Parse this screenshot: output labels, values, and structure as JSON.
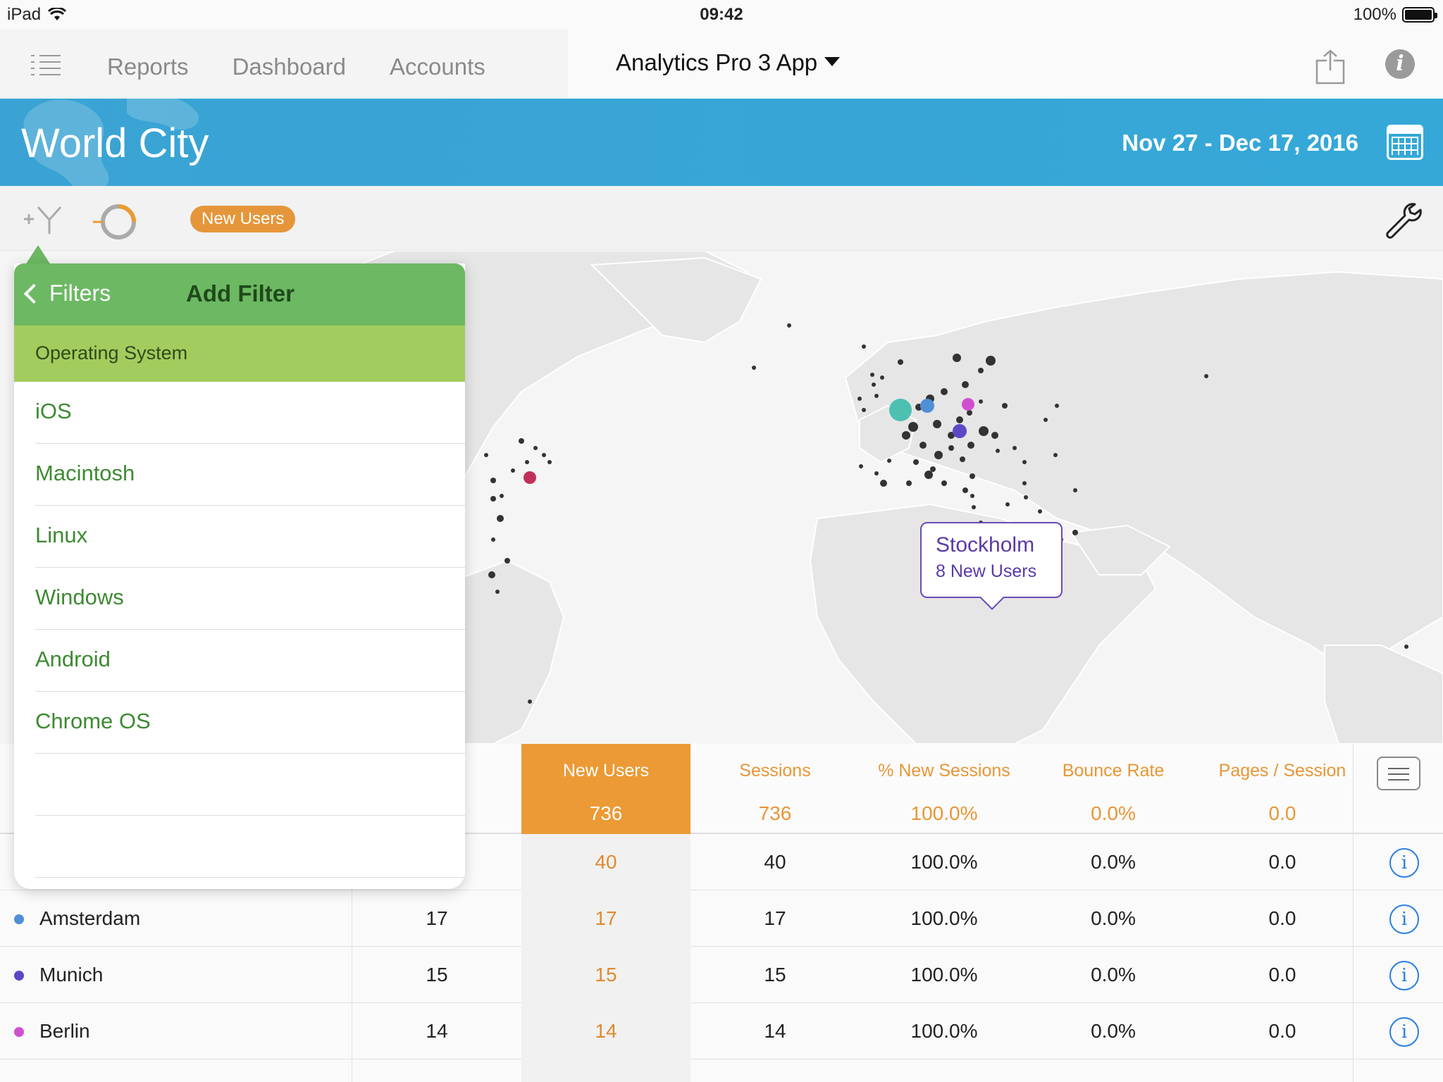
{
  "status_bar": {
    "device": "iPad",
    "time": "09:42",
    "battery": "100%",
    "battery_level": 1.0
  },
  "nav": {
    "tabs": [
      "Reports",
      "Dashboard",
      "Accounts"
    ],
    "app_title": "Analytics Pro 3 App"
  },
  "banner": {
    "title": "World City",
    "date_range": "Nov 27 - Dec 17, 2016"
  },
  "toolbar": {
    "metric_pill": "New Users"
  },
  "map_callout": {
    "city": "Stockholm",
    "detail": "8 New Users"
  },
  "colors": {
    "banner": "#3aa3d3",
    "accent_orange": "#eb9a35",
    "filter_green": "#6db863",
    "section_green": "#a3cc5e",
    "amsterdam": "#4f8fd6",
    "munich": "#5a48c6",
    "berlin": "#d04fd0"
  },
  "table": {
    "headers": [
      {
        "label": "New Users",
        "total": "736"
      },
      {
        "label": "Sessions",
        "total": "736"
      },
      {
        "label": "% New Sessions",
        "total": "100.0%"
      },
      {
        "label": "Bounce Rate",
        "total": "0.0%"
      },
      {
        "label": "Pages / Session",
        "total": "0.0"
      }
    ],
    "rows": [
      {
        "name": "",
        "users": "",
        "new_users": "40",
        "sessions": "40",
        "pct_new": "100.0%",
        "bounce": "0.0%",
        "pages": "0.0"
      },
      {
        "name": "Amsterdam",
        "users": "17",
        "new_users": "17",
        "sessions": "17",
        "pct_new": "100.0%",
        "bounce": "0.0%",
        "pages": "0.0"
      },
      {
        "name": "Munich",
        "users": "15",
        "new_users": "15",
        "sessions": "15",
        "pct_new": "100.0%",
        "bounce": "0.0%",
        "pages": "0.0"
      },
      {
        "name": "Berlin",
        "users": "14",
        "new_users": "14",
        "sessions": "14",
        "pct_new": "100.0%",
        "bounce": "0.0%",
        "pages": "0.0"
      }
    ]
  },
  "filter_popover": {
    "back_label": "Filters",
    "title": "Add Filter",
    "section": "Operating System",
    "items": [
      "iOS",
      "Macintosh",
      "Linux",
      "Windows",
      "Android",
      "Chrome OS",
      "",
      ""
    ]
  }
}
